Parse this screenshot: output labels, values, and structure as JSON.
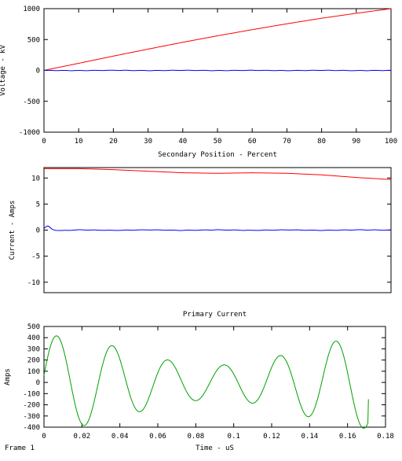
{
  "frame_label": "Frame 1",
  "chart_data": [
    {
      "type": "line",
      "title": "",
      "xlabel": "Secondary Position - Percent",
      "ylabel": "Voltage - kV",
      "xlim": [
        0,
        100
      ],
      "ylim": [
        -1000,
        1000
      ],
      "xticks": [
        0,
        10,
        20,
        30,
        40,
        50,
        60,
        70,
        80,
        90,
        100
      ],
      "yticks": [
        -1000,
        -500,
        0,
        500,
        1000
      ],
      "series": [
        {
          "color": "#ff0000",
          "x": [
            0,
            10,
            20,
            30,
            40,
            50,
            60,
            70,
            80,
            90,
            100
          ],
          "values": [
            0,
            115,
            232,
            345,
            455,
            560,
            660,
            755,
            845,
            925,
            1000
          ]
        },
        {
          "color": "#0000ff",
          "x": [
            0,
            10,
            20,
            30,
            40,
            50,
            60,
            70,
            80,
            90,
            100
          ],
          "values": [
            0,
            -3,
            2,
            -3,
            2,
            -3,
            2,
            -3,
            2,
            -3,
            0
          ],
          "ripple": true
        }
      ]
    },
    {
      "type": "line",
      "title": "",
      "xlabel": "",
      "ylabel": "Current - Amps",
      "xlim": [
        0,
        100
      ],
      "ylim": [
        -12,
        12
      ],
      "xticks": [],
      "yticks": [
        -10,
        -5,
        0,
        5,
        10
      ],
      "series": [
        {
          "color": "#ff0000",
          "x": [
            0,
            10,
            20,
            30,
            40,
            50,
            60,
            70,
            80,
            90,
            100
          ],
          "values": [
            11.8,
            11.8,
            11.6,
            11.3,
            11.0,
            10.9,
            11.0,
            10.9,
            10.6,
            10.1,
            9.7
          ]
        },
        {
          "color": "#0000ff",
          "x": [
            0,
            0.5,
            1,
            1.5,
            2,
            3,
            5,
            10,
            20,
            30,
            40,
            50,
            60,
            70,
            80,
            90,
            100
          ],
          "values": [
            0.3,
            0.6,
            0.8,
            0.7,
            0.3,
            0.0,
            -0.1,
            0.05,
            -0.05,
            0.05,
            -0.05,
            0.05,
            -0.05,
            0.05,
            -0.05,
            0.05,
            0.0
          ],
          "ripple": true
        }
      ]
    },
    {
      "type": "line",
      "title": "Primary Current",
      "xlabel": "Time - uS",
      "ylabel": "Amps",
      "xlim": [
        0,
        0.18
      ],
      "ylim": [
        -400,
        500
      ],
      "xticks": [
        0,
        0.02,
        0.04,
        0.06,
        0.08,
        0.1,
        0.12,
        0.14,
        0.16,
        0.18
      ],
      "yticks": [
        -400,
        -300,
        -200,
        -100,
        0,
        100,
        200,
        300,
        400,
        500
      ],
      "series": [
        {
          "color": "#00a000",
          "waveform": {
            "t_end": 0.171,
            "frequency_mhz": 34.0,
            "phase_rad": 0.15,
            "beat_period_us": 0.18,
            "amp_max": 420,
            "amp_min": 155,
            "end_value": -150
          }
        }
      ]
    }
  ]
}
